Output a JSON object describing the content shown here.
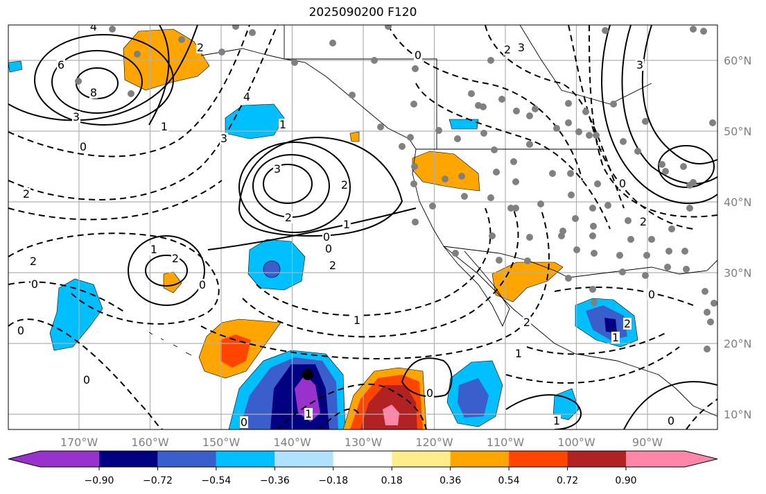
{
  "title": "2025090200 F120",
  "map": {
    "lon_labels": [
      "170°W",
      "160°W",
      "150°W",
      "140°W",
      "130°W",
      "120°W",
      "110°W",
      "100°W",
      "90°W"
    ],
    "lat_labels": [
      "60°N",
      "50°N",
      "40°N",
      "30°N",
      "20°N",
      "10°N"
    ],
    "contour_labels": [
      "4",
      "6",
      "8",
      "3",
      "0",
      "2",
      "2",
      "0",
      "0",
      "0",
      "1",
      "2",
      "0",
      "3",
      "2",
      "2",
      "1",
      "0",
      "0",
      "2",
      "1",
      "3",
      "4",
      "1",
      "0",
      "3",
      "2",
      "0",
      "1",
      "2",
      "0",
      "1",
      "2",
      "0",
      "1",
      "0",
      "1",
      "0",
      "3",
      "2",
      "1",
      "2"
    ],
    "colors": {
      "grid": "#b0b0b0",
      "contour": "#000000",
      "station": "#808080"
    }
  },
  "colorbar": {
    "ticks": [
      "−0.90",
      "−0.72",
      "−0.54",
      "−0.36",
      "−0.18",
      "0.18",
      "0.36",
      "0.54",
      "0.72",
      "0.90"
    ],
    "colors": [
      "#9932cc",
      "#000080",
      "#3a5fcd",
      "#00bfff",
      "#b0e2ff",
      "#ffffff",
      "#ffec8b",
      "#ffa500",
      "#ff4500",
      "#b22222",
      "#ff86a8"
    ]
  }
}
